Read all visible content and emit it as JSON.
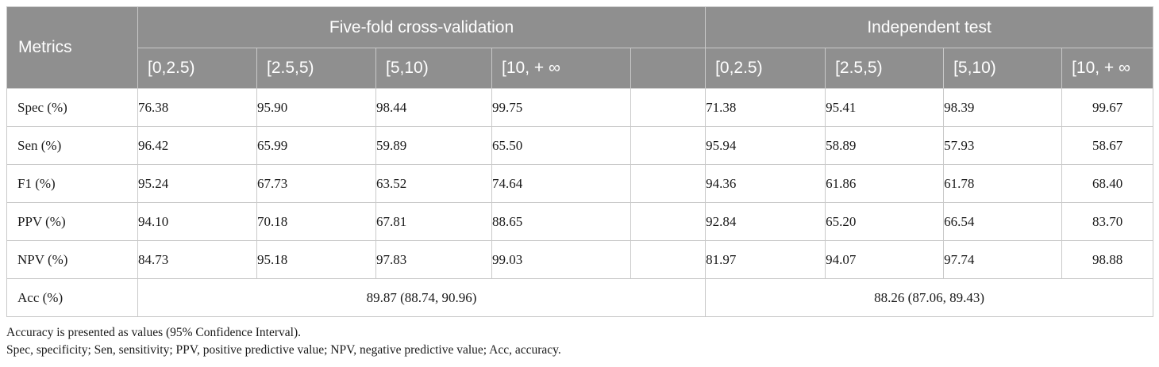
{
  "table": {
    "metric_header": "Metrics",
    "group_cv": "Five-fold cross-validation",
    "group_test": "Independent test",
    "intervals": [
      "[0,2.5)",
      "[2.5,5)",
      "[5,10)",
      "[10, + ∞"
    ],
    "rows": [
      {
        "label": "Spec (%)",
        "cv": [
          "76.38",
          "95.90",
          "98.44",
          "99.75"
        ],
        "test": [
          "71.38",
          "95.41",
          "98.39",
          "99.67"
        ]
      },
      {
        "label": "Sen (%)",
        "cv": [
          "96.42",
          "65.99",
          "59.89",
          "65.50"
        ],
        "test": [
          "95.94",
          "58.89",
          "57.93",
          "58.67"
        ]
      },
      {
        "label": "F1 (%)",
        "cv": [
          "95.24",
          "67.73",
          "63.52",
          "74.64"
        ],
        "test": [
          "94.36",
          "61.86",
          "61.78",
          "68.40"
        ]
      },
      {
        "label": "PPV (%)",
        "cv": [
          "94.10",
          "70.18",
          "67.81",
          "88.65"
        ],
        "test": [
          "92.84",
          "65.20",
          "66.54",
          "83.70"
        ]
      },
      {
        "label": "NPV (%)",
        "cv": [
          "84.73",
          "95.18",
          "97.83",
          "99.03"
        ],
        "test": [
          "81.97",
          "94.07",
          "97.74",
          "98.88"
        ]
      }
    ],
    "acc": {
      "label": "Acc (%)",
      "cv": "89.87 (88.74, 90.96)",
      "test": "88.26 (87.06, 89.43)"
    }
  },
  "footnotes": [
    "Accuracy is presented as values (95% Confidence Interval).",
    "Spec, specificity; Sen, sensitivity; PPV, positive predictive value; NPV, negative predictive value; Acc, accuracy."
  ]
}
